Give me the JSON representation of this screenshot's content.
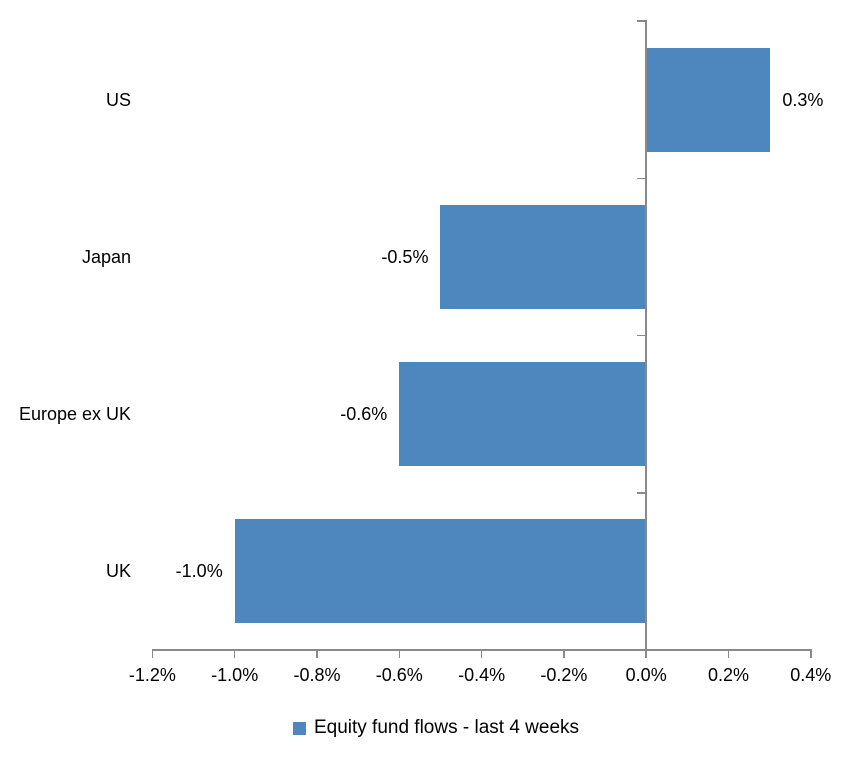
{
  "chart_data": {
    "type": "bar",
    "orientation": "horizontal",
    "title": "",
    "xlabel": "",
    "ylabel": "",
    "categories": [
      "US",
      "Japan",
      "Europe ex UK",
      "UK"
    ],
    "values": [
      0.3,
      -0.5,
      -0.6,
      -1.0
    ],
    "value_labels": [
      "0.3%",
      "-0.5%",
      "-0.6%",
      "-1.0%"
    ],
    "legend": "Equity fund flows - last 4 weeks",
    "legend_position": "bottom",
    "legend_marker": "square",
    "xlim": [
      -1.2,
      0.4
    ],
    "x_ticks": [
      -1.2,
      -1.0,
      -0.8,
      -0.6,
      -0.4,
      -0.2,
      0.0,
      0.2,
      0.4
    ],
    "x_tick_labels": [
      "-1.2%",
      "-1.0%",
      "-0.8%",
      "-0.6%",
      "-0.4%",
      "-0.2%",
      "0.0%",
      "0.2%",
      "0.4%"
    ],
    "grid": false,
    "colors": {
      "bar": "#4E86BE",
      "axis": "#898989",
      "text": "#000000",
      "background": "#FFFFFF"
    }
  }
}
